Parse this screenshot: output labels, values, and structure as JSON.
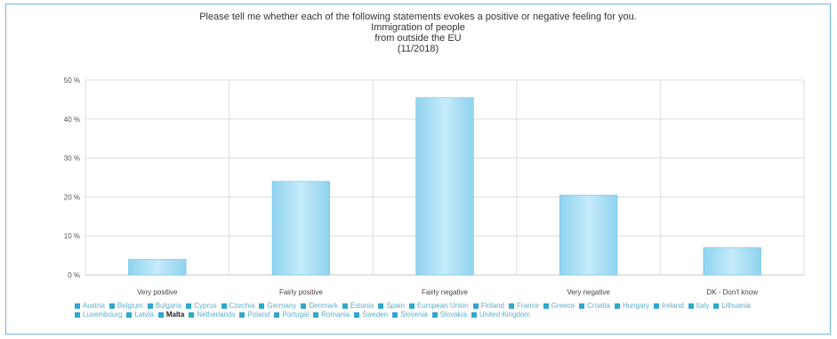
{
  "chart_data": {
    "type": "bar",
    "title_lines": [
      "Please tell me whether each of the following statements evokes a positive or negative feeling for you.",
      "Immigration of people",
      "from outside the EU",
      "(11/2018)"
    ],
    "categories": [
      "Very positive",
      "Fairly positive",
      "Fairly negative",
      "Very negative",
      "DK - Don't know"
    ],
    "values": [
      4,
      24,
      45.5,
      20.5,
      7
    ],
    "ylim": [
      0,
      50
    ],
    "yticks": [
      0,
      10,
      20,
      30,
      40,
      50
    ],
    "ytick_labels": [
      "0 %",
      "10 %",
      "20 %",
      "30 %",
      "40 %",
      "50 %"
    ],
    "grid": true,
    "bar_color": "#8fd3ef",
    "bar_highlight": "#c6ebfa",
    "legend_placement": "bottom",
    "legend": [
      "Austria",
      "Belgium",
      "Bulgaria",
      "Cyprus",
      "Czechia",
      "Germany",
      "Denmark",
      "Estonia",
      "Spain",
      "European Union",
      "Finland",
      "France",
      "Greece",
      "Croatia",
      "Hungary",
      "Ireland",
      "Italy",
      "Lithuania",
      "Luxembourg",
      "Latvia",
      "Malta",
      "Netherlands",
      "Poland",
      "Portugal",
      "Romania",
      "Sweden",
      "Slovenia",
      "Slovakia",
      "United Kingdom"
    ],
    "legend_highlight": "Malta",
    "legend_color": "#2fa7cf"
  }
}
